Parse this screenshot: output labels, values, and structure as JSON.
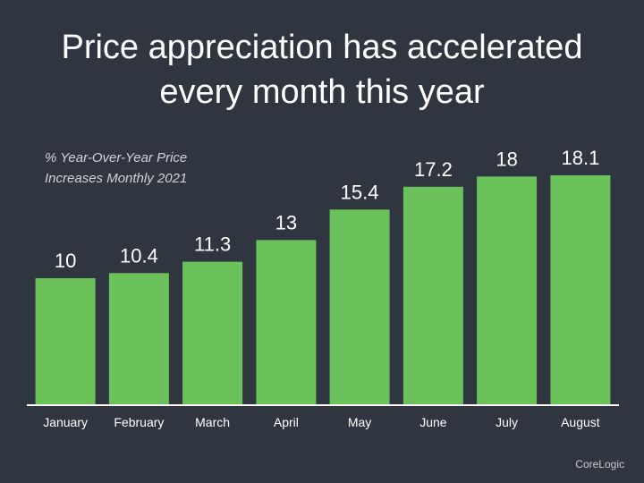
{
  "title": {
    "line1": "Price appreciation has accelerated",
    "line2": "every month this year"
  },
  "subtitle": {
    "line1": "% Year-Over-Year Price",
    "line2": "Increases Monthly 2021"
  },
  "source": "CoreLogic",
  "colors": {
    "background": "#2f3640",
    "bar": "#6cc25a",
    "text": "#ffffff",
    "subtitle": "#d0d3d7",
    "axis": "#ffffff"
  },
  "chart_data": {
    "type": "bar",
    "categories": [
      "January",
      "February",
      "March",
      "April",
      "May",
      "June",
      "July",
      "August"
    ],
    "values": [
      10,
      10.4,
      11.3,
      13,
      15.4,
      17.2,
      18,
      18.1
    ],
    "data_labels": [
      "10",
      "10.4",
      "11.3",
      "13",
      "15.4",
      "17.2",
      "18",
      "18.1"
    ],
    "title": "Price appreciation has accelerated every month this year",
    "subtitle": "% Year-Over-Year Price Increases Monthly 2021",
    "xlabel": "",
    "ylabel": "",
    "ylim": [
      0,
      18.1
    ],
    "grid": false,
    "legend": "none"
  }
}
